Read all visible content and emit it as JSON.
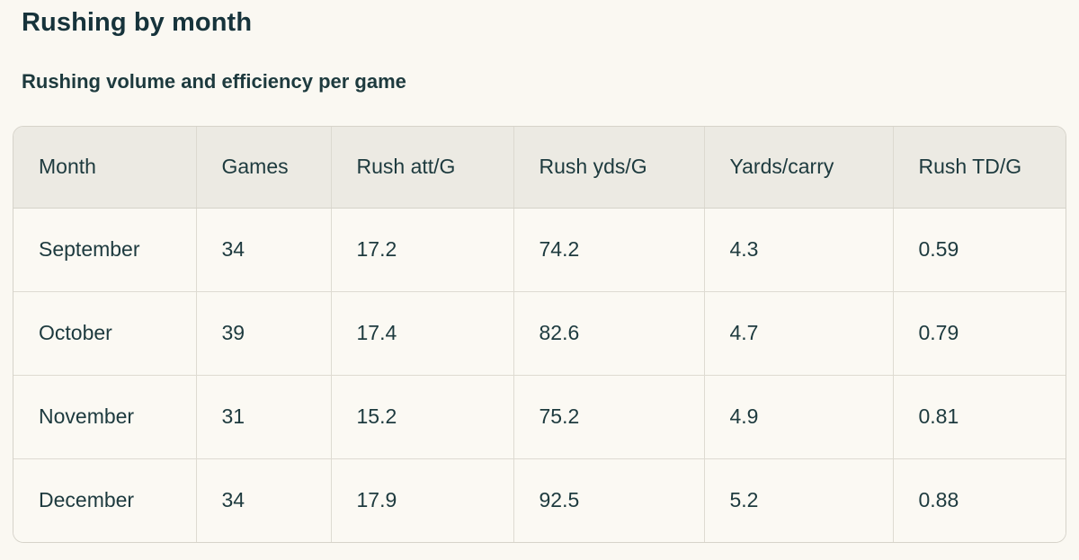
{
  "page": {
    "title": "Rushing by month",
    "subtitle": "Rushing volume and efficiency per game"
  },
  "colors": {
    "page_background": "#FAF8F2",
    "header_background": "#ECEAE3",
    "row_background": "#FBF9F3",
    "border": "#D6D3CA",
    "text": "#1D3A3E"
  },
  "chart_data": {
    "type": "table",
    "title": "Rushing by month",
    "subtitle": "Rushing volume and efficiency per game",
    "columns": [
      "Month",
      "Games",
      "Rush att/G",
      "Rush yds/G",
      "Yards/carry",
      "Rush TD/G"
    ],
    "rows": [
      [
        "September",
        "34",
        "17.2",
        "74.2",
        "4.3",
        "0.59"
      ],
      [
        "October",
        "39",
        "17.4",
        "82.6",
        "4.7",
        "0.79"
      ],
      [
        "November",
        "31",
        "15.2",
        "75.2",
        "4.9",
        "0.81"
      ],
      [
        "December",
        "34",
        "17.9",
        "92.5",
        "5.2",
        "0.88"
      ]
    ]
  }
}
